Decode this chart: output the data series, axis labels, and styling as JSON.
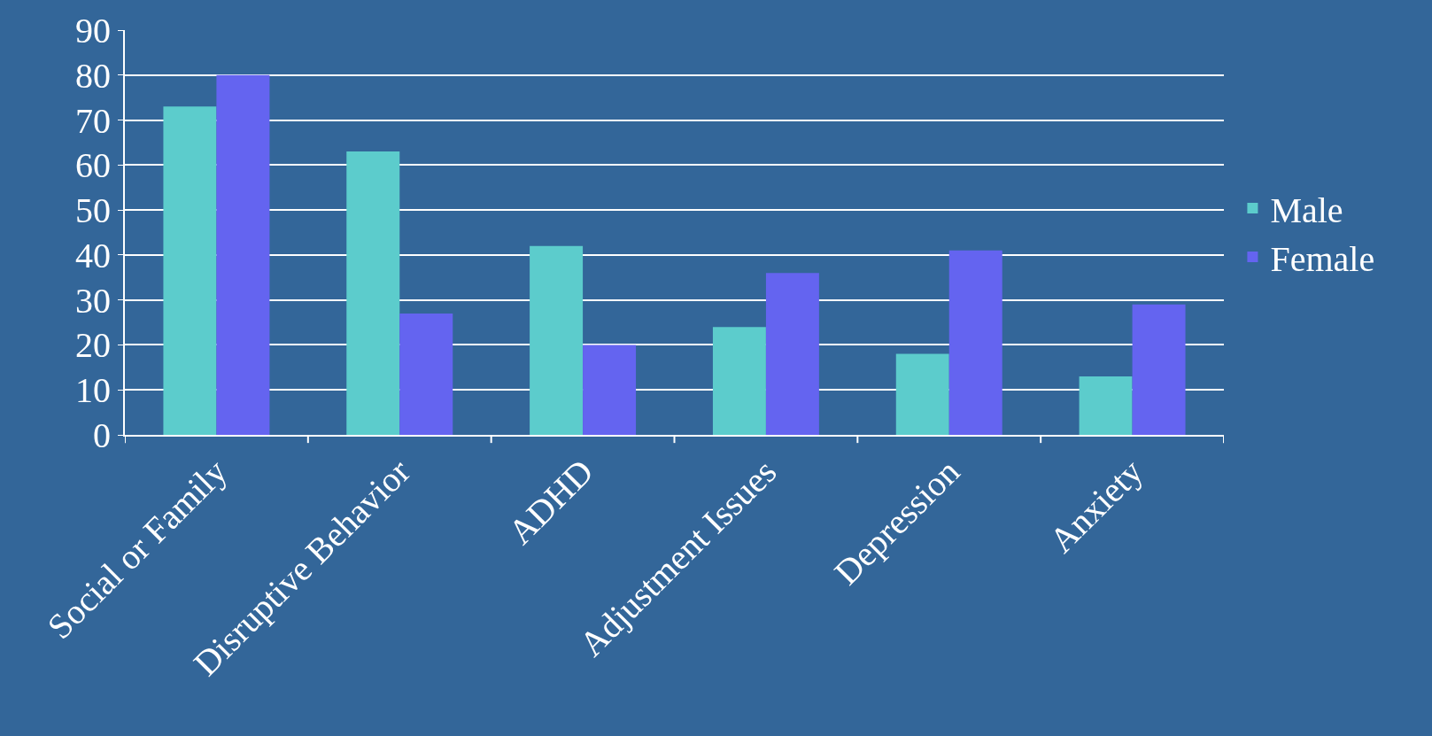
{
  "chart_data": {
    "type": "bar",
    "categories": [
      "Social or Family",
      "Disruptive Behavior",
      "ADHD",
      "Adjustment Issues",
      "Depression",
      "Anxiety"
    ],
    "series": [
      {
        "name": "Male",
        "color": "#5ccccc",
        "values": [
          73,
          63,
          42,
          24,
          18,
          13
        ]
      },
      {
        "name": "Female",
        "color": "#6464f0",
        "values": [
          80,
          27,
          20,
          36,
          41,
          29
        ]
      }
    ],
    "ylim": [
      0,
      90
    ],
    "yticks": [
      0,
      10,
      20,
      30,
      40,
      50,
      60,
      70,
      80,
      90
    ],
    "grid": "y",
    "legend": "right"
  }
}
